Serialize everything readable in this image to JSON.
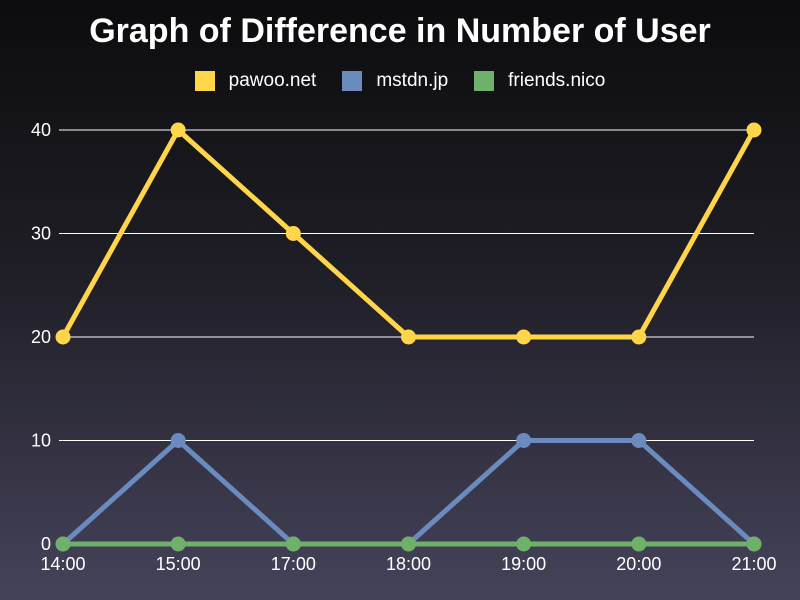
{
  "chart_data": {
    "type": "line",
    "title": "Graph of Difference in Number of User",
    "categories": [
      "14:00",
      "15:00",
      "17:00",
      "18:00",
      "19:00",
      "20:00",
      "21:00"
    ],
    "series": [
      {
        "name": "pawoo.net",
        "color": "#ffd54a",
        "values": [
          20,
          40,
          30,
          20,
          20,
          20,
          40
        ]
      },
      {
        "name": "mstdn.jp",
        "color": "#6b8bbf",
        "values": [
          0,
          10,
          0,
          0,
          10,
          10,
          0
        ]
      },
      {
        "name": "friends.nico",
        "color": "#6fb06a",
        "values": [
          0,
          0,
          0,
          0,
          0,
          0,
          0
        ]
      }
    ],
    "yticks": [
      0,
      10,
      20,
      30,
      40
    ],
    "ylim": [
      0,
      40
    ],
    "xlabel": "",
    "ylabel": "",
    "grid": true,
    "legend_position": "top"
  }
}
